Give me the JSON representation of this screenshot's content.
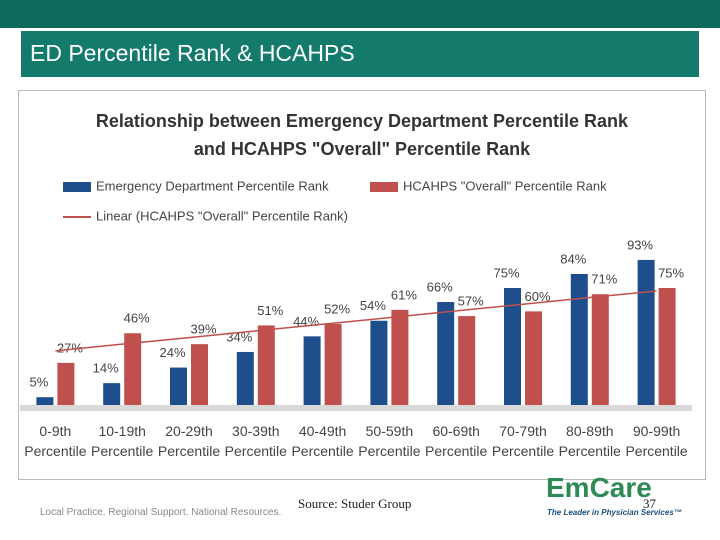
{
  "header": {
    "title": "ED Percentile Rank & HCAHPS"
  },
  "chart_data": {
    "type": "bar",
    "title": "Relationship between Emergency Department Percentile Rank\nand HCAHPS \"Overall\" Percentile Rank",
    "categories": [
      "0-9th\nPercentile",
      "10-19th\nPercentile",
      "20-29th\nPercentile",
      "30-39th\nPercentile",
      "40-49th\nPercentile",
      "50-59th\nPercentile",
      "60-69th\nPercentile",
      "70-79th\nPercentile",
      "80-89th\nPercentile",
      "90-99th\nPercentile"
    ],
    "series": [
      {
        "name": "Emergency Department Percentile Rank",
        "color": "#1f4e8c",
        "values": [
          5,
          14,
          24,
          34,
          44,
          54,
          66,
          75,
          84,
          93
        ],
        "value_labels": [
          "5%",
          "14%",
          "24%",
          "34%",
          "44%",
          "54%",
          "66%",
          "75%",
          "84%",
          "93%"
        ]
      },
      {
        "name": "HCAHPS \"Overall\" Percentile Rank",
        "color": "#c0504d",
        "values": [
          27,
          46,
          39,
          51,
          52,
          61,
          57,
          60,
          71,
          75
        ],
        "value_labels": [
          "27%",
          "46%",
          "39%",
          "51%",
          "52%",
          "61%",
          "57%",
          "60%",
          "71%",
          "75%"
        ]
      },
      {
        "name": "Linear (HCAHPS \"Overall\" Percentile Rank)",
        "color": "#c0504d",
        "type": "line",
        "values": [
          34.7,
          39.0,
          43.2,
          47.5,
          51.8,
          56.0,
          60.3,
          64.6,
          68.9,
          73.1
        ]
      }
    ],
    "ylim": [
      0,
      100
    ]
  },
  "footer": {
    "source": "Source: Studer Group",
    "page": "37",
    "tagline": "Local Practice. Regional Support. National Resources.",
    "logo": "EmCare",
    "logo_tagline": "The Leader in Physician Services™"
  }
}
